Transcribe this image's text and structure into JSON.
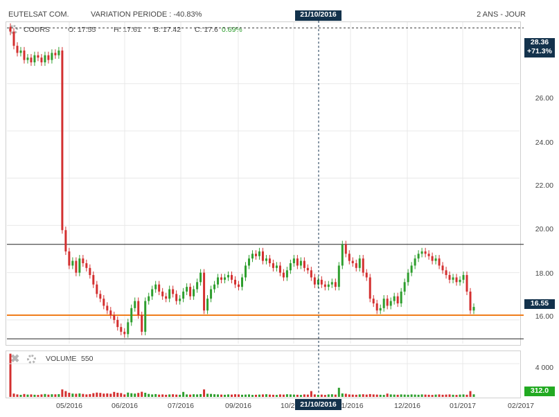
{
  "header": {
    "instrument": "EUTELSAT COM.",
    "variation_label": "VARIATION PERIODE : -40.83%",
    "period": "2 ANS - JOUR",
    "cursor_date": "21/10/2016"
  },
  "price_panel": {
    "label": "COURS",
    "open": "O: 17.55",
    "high": "H: 17.61",
    "low": "B: 17.42",
    "close": "C: 17.6",
    "change": "0.69%",
    "max_tag": "28.36",
    "max_change": "+71.3%",
    "last_tag": "16.55"
  },
  "volume_panel": {
    "label": "VOLUME",
    "value": "550",
    "last_tag": "312.0",
    "ytick": "4 000"
  },
  "colors": {
    "up": "#2e9e2e",
    "down": "#d32f2f",
    "last_line": "#f07d1a",
    "tag_dark": "#13324c",
    "volume_tag": "#22aa22"
  },
  "chart_data": {
    "type": "candlestick",
    "title": "EUTELSAT COM.",
    "ylim": [
      15.0,
      28.6
    ],
    "yticks": [
      "26.00",
      "24.00",
      "22.00",
      "20.00",
      "18.00",
      "16.00"
    ],
    "xticks": [
      "05/2016",
      "06/2016",
      "07/2016",
      "09/2016",
      "10/2016",
      "21/10/2016",
      "11/2016",
      "12/2016",
      "01/2017",
      "02/2017"
    ],
    "horizontal_lines": [
      19.2,
      16.2,
      15.2
    ],
    "series_close_approx": [
      28.2,
      27.6,
      27.3,
      27.4,
      27.0,
      27.1,
      26.9,
      27.2,
      27.1,
      26.9,
      27.2,
      27.0,
      27.3,
      27.2,
      27.4,
      19.8,
      18.9,
      18.3,
      18.5,
      18.0,
      18.6,
      18.4,
      18.2,
      17.9,
      17.5,
      17.1,
      16.9,
      16.6,
      16.4,
      16.2,
      16.0,
      15.7,
      15.5,
      15.4,
      15.9,
      16.5,
      16.8,
      16.2,
      15.5,
      16.8,
      17.0,
      17.3,
      17.5,
      17.2,
      17.0,
      16.9,
      17.3,
      17.1,
      16.8,
      16.9,
      17.2,
      17.4,
      17.0,
      17.3,
      17.6,
      18.0,
      16.4,
      16.9,
      17.3,
      17.5,
      17.8,
      17.7,
      17.8,
      17.9,
      17.7,
      17.5,
      17.4,
      17.8,
      18.3,
      18.6,
      18.8,
      18.7,
      18.9,
      18.5,
      18.6,
      18.4,
      18.2,
      18.3,
      18.0,
      17.8,
      18.1,
      18.4,
      18.6,
      18.3,
      18.5,
      18.2,
      18.1,
      17.8,
      17.5,
      17.7,
      17.5,
      17.4,
      17.5,
      17.6,
      17.4,
      18.3,
      19.2,
      18.8,
      18.5,
      18.4,
      18.2,
      18.6,
      18.0,
      17.8,
      16.9,
      16.7,
      16.4,
      16.5,
      16.9,
      16.6,
      16.8,
      17.0,
      16.7,
      17.2,
      17.6,
      18.0,
      18.3,
      18.6,
      18.8,
      18.9,
      18.8,
      18.7,
      18.5,
      18.6,
      18.3,
      18.1,
      17.9,
      17.7,
      17.8,
      17.6,
      17.7,
      17.9,
      17.2,
      16.4,
      16.55
    ],
    "volume_approx": [
      5200,
      400,
      300,
      250,
      350,
      280,
      300,
      260,
      240,
      300,
      350,
      280,
      320,
      310,
      330,
      900,
      700,
      500,
      400,
      380,
      420,
      360,
      300,
      340,
      450,
      520,
      480,
      400,
      420,
      380,
      600,
      500,
      460,
      300,
      520,
      440,
      400,
      480,
      620,
      500,
      360,
      300,
      340,
      280,
      300,
      260,
      300,
      320,
      280,
      260,
      600,
      300,
      280,
      320,
      300,
      340,
      900,
      380,
      360,
      320,
      300,
      280,
      260,
      300,
      280,
      320,
      300,
      260,
      280,
      300,
      240,
      260,
      280,
      300,
      320,
      280,
      260,
      240,
      300,
      280,
      320,
      300,
      280,
      260,
      240,
      300,
      280,
      700,
      300,
      260,
      280,
      240,
      300,
      320,
      280,
      1100,
      420,
      380,
      300,
      280,
      260,
      300,
      320,
      280,
      340,
      300,
      280,
      260,
      240,
      400,
      300,
      280,
      260,
      300,
      280,
      260,
      300,
      280,
      260,
      300,
      280,
      260,
      240,
      280,
      300,
      260,
      280,
      300,
      260,
      240,
      280,
      300,
      260,
      700,
      312
    ],
    "volume_ylim": [
      0,
      5500
    ]
  }
}
